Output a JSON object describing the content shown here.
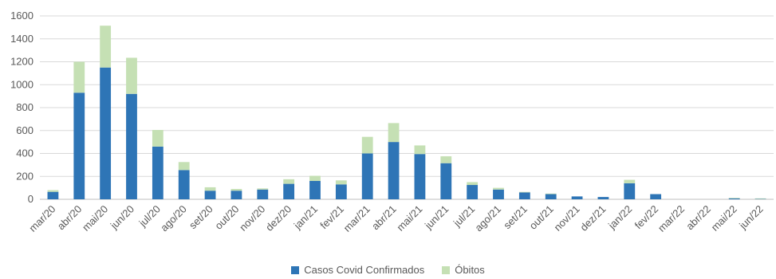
{
  "chart_data": {
    "type": "bar",
    "stacked": true,
    "categories": [
      "mar/20",
      "abr/20",
      "mai/20",
      "jun/20",
      "jul/20",
      "ago/20",
      "set/20",
      "out/20",
      "nov/20",
      "dez/20",
      "jan/21",
      "fev/21",
      "mar/21",
      "abr/21",
      "mai/21",
      "jun/21",
      "jul/21",
      "ago/21",
      "set/21",
      "out/21",
      "nov/21",
      "dez/21",
      "jan/22",
      "fev/22",
      "mar/22",
      "abr/22",
      "mai/22",
      "jun/22"
    ],
    "series": [
      {
        "name": "Casos Covid Confirmados",
        "color": "#2E75B6",
        "values": [
          65,
          930,
          1150,
          920,
          460,
          255,
          75,
          75,
          85,
          135,
          160,
          130,
          400,
          500,
          395,
          315,
          125,
          85,
          60,
          45,
          25,
          20,
          140,
          45,
          0,
          0,
          8,
          3
        ]
      },
      {
        "name": "Óbitos",
        "color": "#C5E0B4",
        "values": [
          15,
          270,
          365,
          315,
          145,
          70,
          30,
          15,
          10,
          40,
          45,
          35,
          145,
          165,
          75,
          60,
          25,
          15,
          5,
          5,
          0,
          0,
          30,
          0,
          0,
          0,
          5,
          5
        ]
      }
    ],
    "ylim": [
      0,
      1600
    ],
    "yticks": [
      0,
      200,
      400,
      600,
      800,
      1000,
      1200,
      1400,
      1600
    ],
    "grid": true,
    "legend_position": "bottom"
  }
}
